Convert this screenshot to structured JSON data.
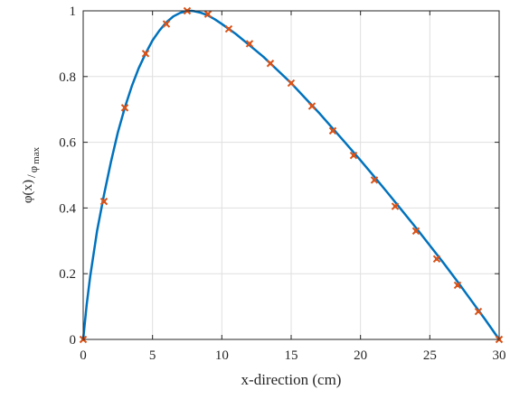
{
  "chart_data": {
    "type": "line",
    "title": "",
    "xlabel": "x-direction (cm)",
    "ylabel": {
      "numerator": "φ(x)",
      "denominator_symbol": "φ",
      "denominator_subscript": "max"
    },
    "xlim": [
      0,
      30
    ],
    "ylim": [
      0,
      1
    ],
    "x_ticks": [
      0,
      5,
      10,
      15,
      20,
      25,
      30
    ],
    "y_ticks": [
      0,
      0.2,
      0.4,
      0.6,
      0.8,
      1
    ],
    "x_tick_labels": [
      "0",
      "5",
      "10",
      "15",
      "20",
      "25",
      "30"
    ],
    "y_tick_labels": [
      "0",
      "0.2",
      "0.4",
      "0.6",
      "0.8",
      "1"
    ],
    "grid": true,
    "legend": "none",
    "series": [
      {
        "style": "solid-line",
        "color": "#0072BD",
        "x": [
          0,
          0.25,
          0.5,
          0.75,
          1,
          1.5,
          2,
          2.5,
          3,
          3.5,
          4,
          4.5,
          5,
          5.5,
          6,
          6.5,
          7,
          7.5,
          7.8,
          8,
          8.5,
          9,
          9.5,
          10,
          11,
          12,
          13,
          14,
          15,
          16,
          17,
          18,
          19,
          20,
          21,
          22,
          23,
          24,
          25,
          26,
          27,
          28,
          29,
          30
        ],
        "y": [
          0,
          0.105,
          0.19,
          0.26,
          0.33,
          0.44,
          0.54,
          0.63,
          0.705,
          0.77,
          0.825,
          0.87,
          0.91,
          0.94,
          0.965,
          0.983,
          0.994,
          0.999,
          1.0,
          0.999,
          0.994,
          0.986,
          0.974,
          0.96,
          0.93,
          0.895,
          0.86,
          0.82,
          0.78,
          0.735,
          0.69,
          0.642,
          0.594,
          0.545,
          0.495,
          0.444,
          0.392,
          0.34,
          0.286,
          0.232,
          0.176,
          0.118,
          0.06,
          0
        ]
      },
      {
        "style": "markers",
        "color": "#D95319",
        "x": [
          0,
          1.5,
          3,
          4.5,
          6,
          7.5,
          9,
          10.5,
          12,
          13.5,
          15,
          16.5,
          18,
          19.5,
          21,
          22.5,
          24,
          25.5,
          27,
          28.5,
          30
        ],
        "y": [
          0,
          0.42,
          0.705,
          0.87,
          0.96,
          1.0,
          0.99,
          0.945,
          0.9,
          0.84,
          0.78,
          0.71,
          0.635,
          0.56,
          0.485,
          0.405,
          0.33,
          0.245,
          0.165,
          0.085,
          0
        ]
      }
    ]
  }
}
